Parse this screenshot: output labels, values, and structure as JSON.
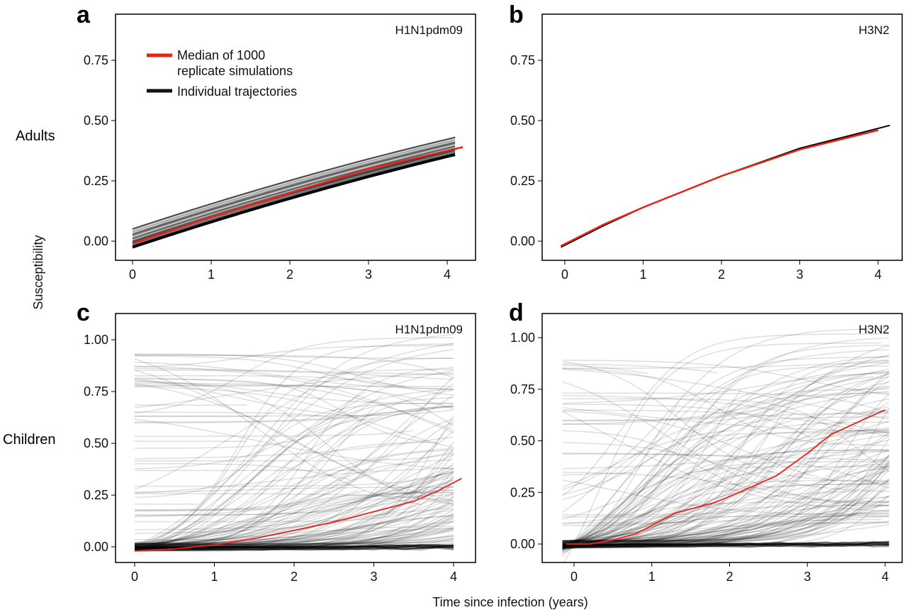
{
  "chart_data": [
    {
      "panel": "a",
      "type": "line",
      "title": "H1N1pdm09",
      "row": "Adults",
      "xlim": [
        -0.2,
        4.3
      ],
      "ylim": [
        -0.08,
        0.92
      ],
      "xticks": [
        0,
        1,
        2,
        3,
        4
      ],
      "yticks": [
        0.0,
        0.25,
        0.5,
        0.75
      ],
      "ytick_labels": [
        "0.00",
        "0.25",
        "0.50",
        "0.75"
      ],
      "median": {
        "x": [
          0,
          1,
          2,
          3,
          4.2
        ],
        "y": [
          -0.01,
          0.1,
          0.2,
          0.3,
          0.39
        ]
      },
      "individual_spread": [
        0.0,
        0.08
      ]
    },
    {
      "panel": "b",
      "type": "line",
      "title": "H3N2",
      "row": "Adults",
      "xlim": [
        -0.3,
        4.3
      ],
      "ylim": [
        -0.08,
        0.92
      ],
      "xticks": [
        0,
        1,
        2,
        3,
        4
      ],
      "yticks": [
        0.0,
        0.25,
        0.5,
        0.75
      ],
      "ytick_labels": [
        "0.00",
        "0.25",
        "0.50",
        "0.75"
      ],
      "median": {
        "x": [
          -0.05,
          0.5,
          1,
          2,
          3,
          4
        ],
        "y": [
          -0.02,
          0.07,
          0.14,
          0.27,
          0.38,
          0.46
        ]
      },
      "individual": {
        "x": [
          -0.05,
          0.5,
          1,
          2,
          3,
          4.15
        ],
        "y": [
          -0.025,
          0.065,
          0.14,
          0.27,
          0.385,
          0.48
        ]
      }
    },
    {
      "panel": "c",
      "type": "line",
      "title": "H1N1pdm09",
      "row": "Children",
      "xlim": [
        -0.2,
        4.3
      ],
      "ylim": [
        -0.08,
        1.1
      ],
      "xticks": [
        0,
        1,
        2,
        3,
        4
      ],
      "yticks": [
        0.0,
        0.25,
        0.5,
        0.75,
        1.0
      ],
      "ytick_labels": [
        "0.00",
        "0.25",
        "0.50",
        "0.75",
        "1.00"
      ],
      "median": {
        "x": [
          0,
          0.5,
          1,
          1.5,
          2,
          2.5,
          3,
          3.5,
          3.8,
          4.1
        ],
        "y": [
          -0.02,
          -0.01,
          0.01,
          0.04,
          0.08,
          0.12,
          0.17,
          0.22,
          0.27,
          0.33
        ]
      }
    },
    {
      "panel": "d",
      "type": "line",
      "title": "H3N2",
      "row": "Children",
      "xlim": [
        -0.4,
        4.2
      ],
      "ylim": [
        -0.08,
        1.1
      ],
      "xticks": [
        0,
        1,
        2,
        3,
        4
      ],
      "yticks": [
        0.0,
        0.25,
        0.5,
        0.75,
        1.0
      ],
      "ytick_labels": [
        "0.00",
        "0.25",
        "0.50",
        "0.75",
        "1.00"
      ],
      "median": {
        "x": [
          -0.1,
          0.2,
          0.5,
          0.8,
          1,
          1.3,
          1.5,
          1.8,
          2,
          2.3,
          2.6,
          3,
          3.3,
          3.7,
          4
        ],
        "y": [
          0,
          0,
          0.02,
          0.05,
          0.09,
          0.15,
          0.17,
          0.2,
          0.23,
          0.28,
          0.33,
          0.44,
          0.53,
          0.6,
          0.65
        ]
      }
    }
  ],
  "legend": {
    "median_label_line1": "Median of 1000",
    "median_label_line2": "replicate simulations",
    "individual_label": "Individual trajectories",
    "placement": "top-left of panel a"
  },
  "ylabel": "Susceptibility",
  "xlabel": "Time since infection (years)",
  "row_labels": [
    "Adults",
    "Children"
  ],
  "colors": {
    "median": "#e8241a",
    "individual": "#000000"
  }
}
